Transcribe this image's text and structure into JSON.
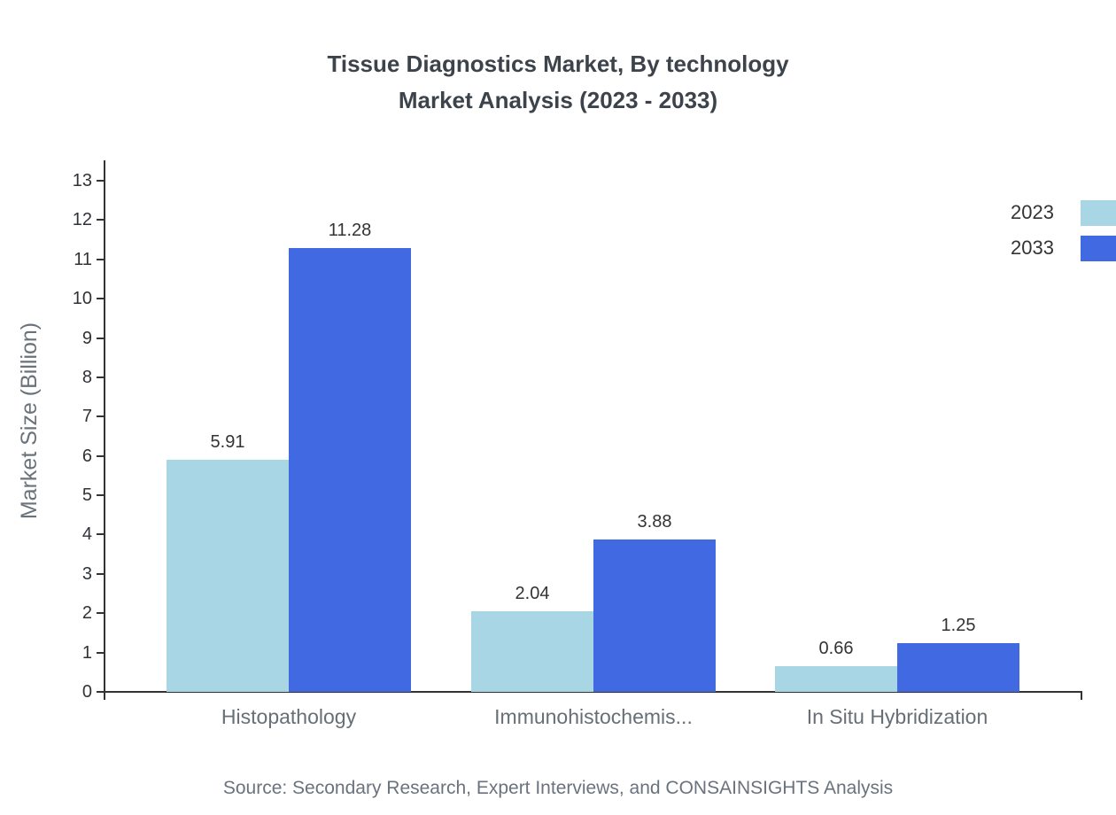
{
  "title": {
    "line1": "Tissue Diagnostics Market, By technology",
    "line2": "Market Analysis (2023 - 2033)"
  },
  "chart_data": {
    "type": "bar",
    "title": "Tissue Diagnostics Market, By technology Market Analysis (2023 - 2033)",
    "categories": [
      "Histopathology",
      "Immunohistochemis...",
      "In Situ Hybridization"
    ],
    "series": [
      {
        "name": "2023",
        "color": "#a9d6e5",
        "values": [
          5.91,
          2.04,
          0.66
        ]
      },
      {
        "name": "2033",
        "color": "#4169e1",
        "values": [
          11.28,
          3.88,
          1.25
        ]
      }
    ],
    "value_labels": {
      "2023": [
        "5.91",
        "2.04",
        "0.66"
      ],
      "2033": [
        "11.28",
        "3.88",
        "1.25"
      ]
    },
    "xlabel": "",
    "ylabel": "Market Size (Billion)",
    "ylim": [
      0,
      13
    ],
    "yticks": [
      0,
      1,
      2,
      3,
      4,
      5,
      6,
      7,
      8,
      9,
      10,
      11,
      12,
      13
    ],
    "grid": false,
    "legend_position": "top-right"
  },
  "legend": {
    "items": [
      {
        "label": "2023",
        "color": "#a9d6e5"
      },
      {
        "label": "2033",
        "color": "#4169e1"
      }
    ]
  },
  "source": "Source: Secondary Research, Expert Interviews, and CONSAINSIGHTS Analysis"
}
